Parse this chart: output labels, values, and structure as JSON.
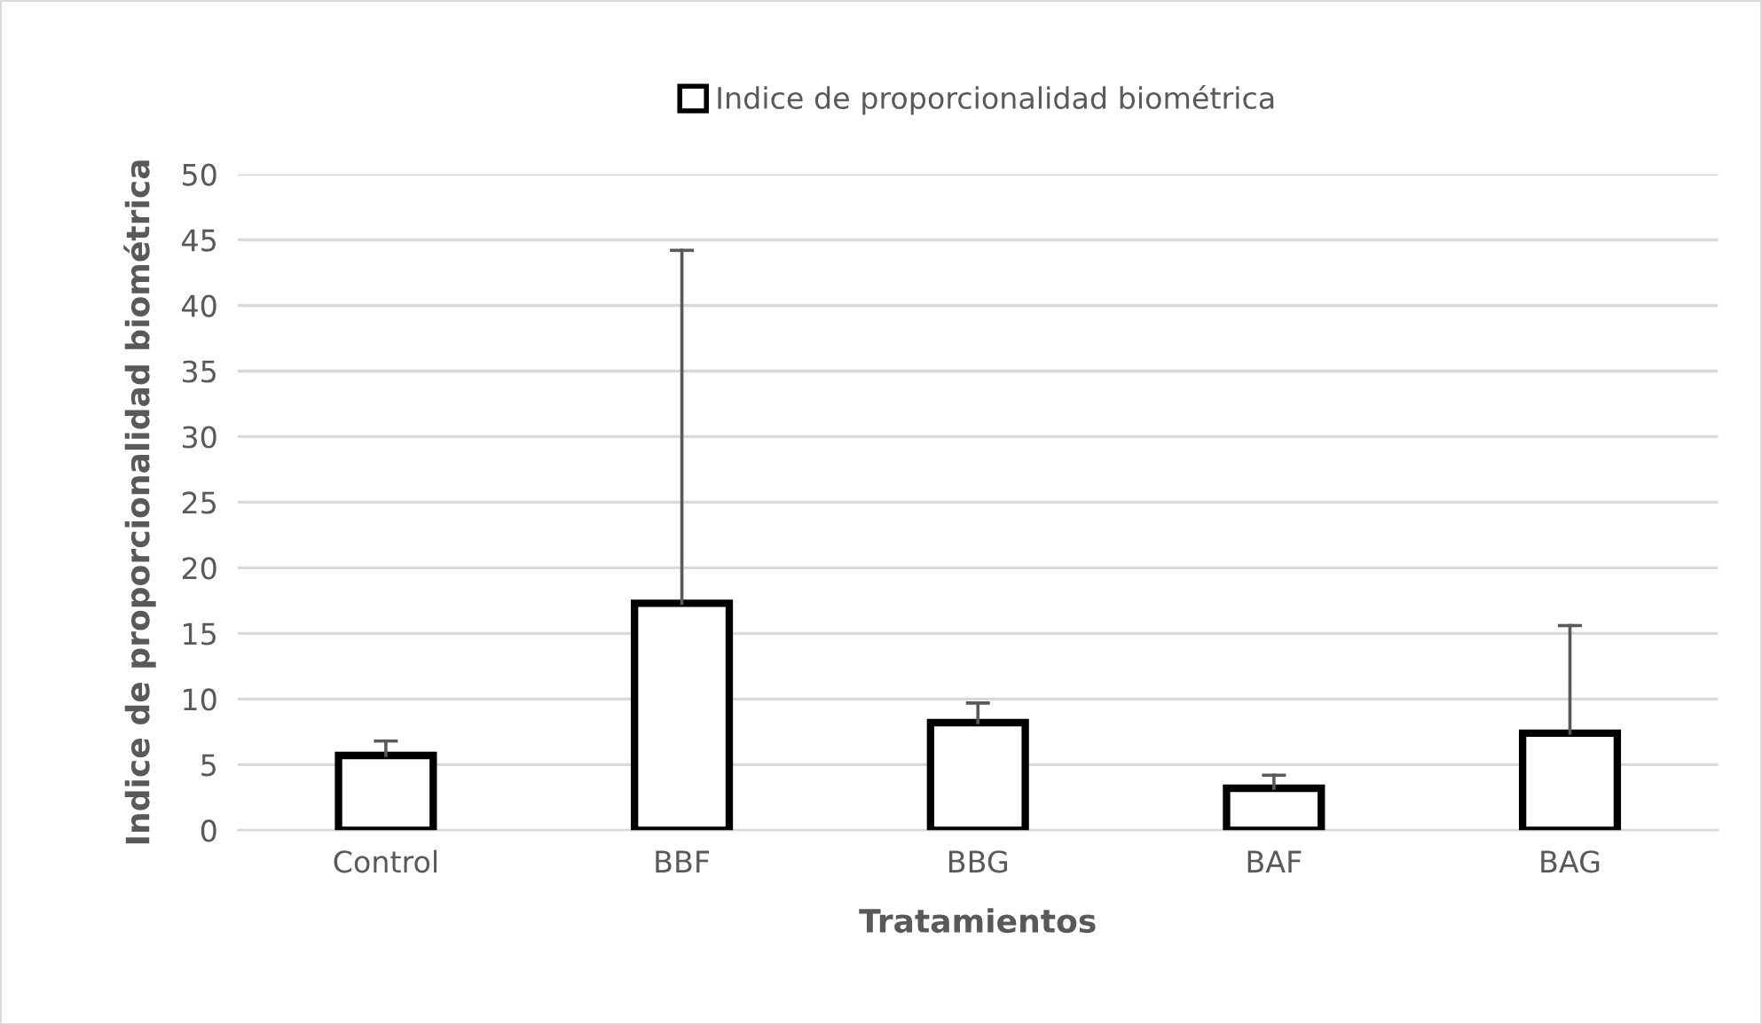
{
  "chart_data": {
    "type": "bar",
    "xlabel": "Tratamientos",
    "ylabel": "Indice de proporcionalidad biométrica",
    "categories": [
      "Control",
      "BBF",
      "BBG",
      "BAF",
      "BAG"
    ],
    "series": [
      {
        "name": "Indice de proporcionalidad biométrica",
        "color": "#ffffff",
        "values": [
          5.7,
          17.3,
          8.2,
          3.2,
          7.4
        ],
        "errors": [
          [
            5.7,
            6.8
          ],
          [
            17.3,
            44.2
          ],
          [
            8.2,
            9.7
          ],
          [
            3.2,
            4.2
          ],
          [
            7.4,
            15.6
          ]
        ]
      }
    ],
    "ylim": [
      0,
      50
    ],
    "yticks": [
      0,
      5,
      10,
      15,
      20,
      25,
      30,
      35,
      40,
      45,
      50
    ],
    "grid": "y",
    "legend": "top"
  }
}
